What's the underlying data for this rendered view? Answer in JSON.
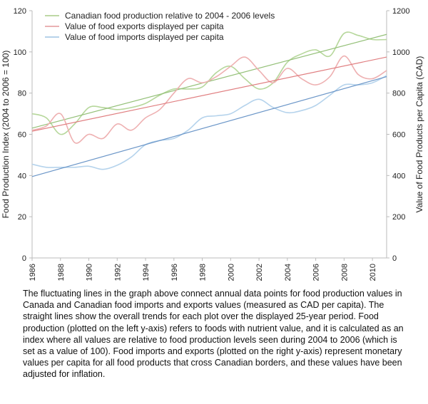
{
  "chart_data": {
    "type": "line",
    "x_ticks": [
      "1986",
      "1988",
      "1990",
      "1992",
      "1994",
      "1996",
      "1998",
      "2000",
      "2002",
      "2004",
      "2006",
      "2008",
      "2010"
    ],
    "x_range": [
      1986,
      2011
    ],
    "y_left": {
      "label": "Food Production Index (2004 to 2006 = 100)",
      "range": [
        0,
        120
      ],
      "ticks": [
        "0",
        "20",
        "40",
        "60",
        "80",
        "100",
        "120"
      ]
    },
    "y_right": {
      "label": "Value of Food Products per Capita (CAD)",
      "range": [
        0,
        1200
      ],
      "ticks": [
        "0",
        "200",
        "400",
        "600",
        "800",
        "1000",
        "1200"
      ]
    },
    "grid": false,
    "legend": {
      "placement": "top-left",
      "entries": [
        {
          "label": "Canadian food production relative to 2004 - 2006 levels",
          "color": "#a8cc88"
        },
        {
          "label": "Value of food exports displayed per capita",
          "color": "#e4999b"
        },
        {
          "label": "Value of food imports displayed per capita",
          "color": "#9ec3e3"
        }
      ]
    },
    "series": [
      {
        "name": "Canadian food production relative to 2004 - 2006 levels",
        "axis": "left",
        "color": "#b6d79b",
        "trend_color": "#94c078",
        "x": [
          1986,
          1987,
          1988,
          1989,
          1990,
          1991,
          1992,
          1993,
          1994,
          1995,
          1996,
          1997,
          1998,
          1999,
          2000,
          2001,
          2002,
          2003,
          2004,
          2005,
          2006,
          2007,
          2008,
          2009,
          2010,
          2011
        ],
        "y": [
          70,
          68,
          60,
          65,
          73,
          73,
          72,
          73,
          75,
          79,
          82,
          82,
          83,
          90,
          93,
          87,
          82,
          85,
          95,
          99,
          101,
          98,
          109,
          108,
          106,
          106
        ],
        "trend": [
          63,
          108.5
        ]
      },
      {
        "name": "Value of food exports displayed per capita",
        "axis": "right",
        "color": "#eeb0b1",
        "trend_color": "#e07e80",
        "x": [
          1986,
          1987,
          1988,
          1989,
          1990,
          1991,
          1992,
          1993,
          1994,
          1995,
          1996,
          1997,
          1998,
          1999,
          2000,
          2001,
          2002,
          2003,
          2004,
          2005,
          2006,
          2007,
          2008,
          2009,
          2010,
          2011
        ],
        "y": [
          620,
          640,
          700,
          560,
          600,
          580,
          650,
          620,
          680,
          720,
          800,
          870,
          850,
          880,
          930,
          975,
          910,
          850,
          920,
          870,
          840,
          880,
          980,
          890,
          870,
          910
        ],
        "trend": [
          615,
          975
        ]
      },
      {
        "name": "Value of food imports displayed per capita",
        "axis": "right",
        "color": "#b5d3ec",
        "trend_color": "#6b96c8",
        "x": [
          1986,
          1987,
          1988,
          1989,
          1990,
          1991,
          1992,
          1993,
          1994,
          1995,
          1996,
          1997,
          1998,
          1999,
          2000,
          2001,
          2002,
          2003,
          2004,
          2005,
          2006,
          2007,
          2008,
          2009,
          2010,
          2011
        ],
        "y": [
          455,
          440,
          440,
          440,
          445,
          430,
          450,
          490,
          550,
          570,
          580,
          620,
          680,
          690,
          700,
          740,
          770,
          730,
          705,
          715,
          740,
          790,
          840,
          840,
          850,
          885
        ],
        "trend": [
          395,
          880
        ]
      }
    ]
  },
  "caption": "The fluctuating lines in the graph above connect annual data points for food production values in Canada and Canadian food imports and exports values (measured as CAD per capita).  The straight lines show the overall trends for each plot over the displayed 25-year period.  Food production (plotted on the left y-axis) refers to foods with nutrient value, and it is calculated as an index where all values are relative to food production levels seen during 2004 to 2006 (which is set as a value of 100).  Food imports and exports (plotted on the right y-axis) represent monetary values per capita for all food products that cross Canadian borders, and these values have been adjusted for inflation."
}
